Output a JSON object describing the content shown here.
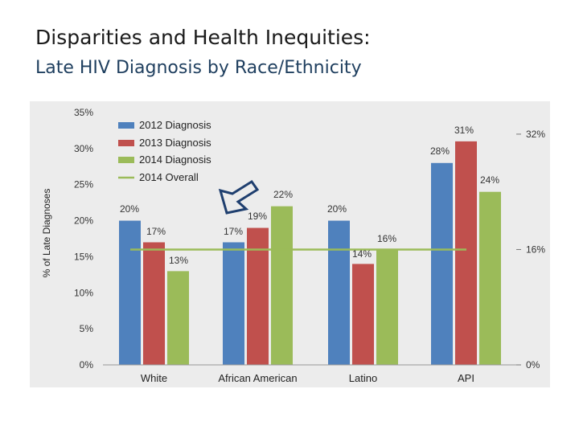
{
  "slide": {
    "title": "Disparities and Health Inequities:",
    "subtitle": "Late HIV Diagnosis by Race/Ethnicity"
  },
  "colors": {
    "s2012": "#4f81bd",
    "s2013": "#c0504d",
    "s2014": "#9bbb59",
    "overall": "#9bbb59",
    "arrow": "#1f3f6f",
    "background": "#ececec"
  },
  "chart_data": {
    "type": "bar",
    "ylabel": "% of Late Diagnoses",
    "ylim": [
      0,
      35
    ],
    "yticks_left": [
      "0%",
      "5%",
      "10%",
      "15%",
      "20%",
      "25%",
      "30%",
      "35%"
    ],
    "right_tick_labels": [
      {
        "value": 32,
        "label": "32%"
      },
      {
        "value": 16,
        "label": "16%"
      },
      {
        "value": 0,
        "label": "0%"
      }
    ],
    "categories": [
      "White",
      "African American",
      "Latino",
      "API"
    ],
    "series": [
      {
        "name": "2012 Diagnosis",
        "values": [
          20,
          17,
          20,
          28
        ],
        "labels": [
          "20%",
          "17%",
          "20%",
          "28%"
        ]
      },
      {
        "name": "2013 Diagnosis",
        "values": [
          17,
          19,
          14,
          31
        ],
        "labels": [
          "17%",
          "19%",
          "14%",
          "31%"
        ]
      },
      {
        "name": "2014 Diagnosis",
        "values": [
          13,
          22,
          16,
          24
        ],
        "labels": [
          "13%",
          "22%",
          "16%",
          "24%"
        ]
      }
    ],
    "reference_line": {
      "name": "2014 Overall",
      "value": 16
    },
    "legend": [
      "2012 Diagnosis",
      "2013 Diagnosis",
      "2014 Diagnosis",
      "2014 Overall"
    ],
    "legend_position": "top-left",
    "grid": false,
    "annotation": "arrow pointing to African American 2014 Diagnosis bar"
  }
}
